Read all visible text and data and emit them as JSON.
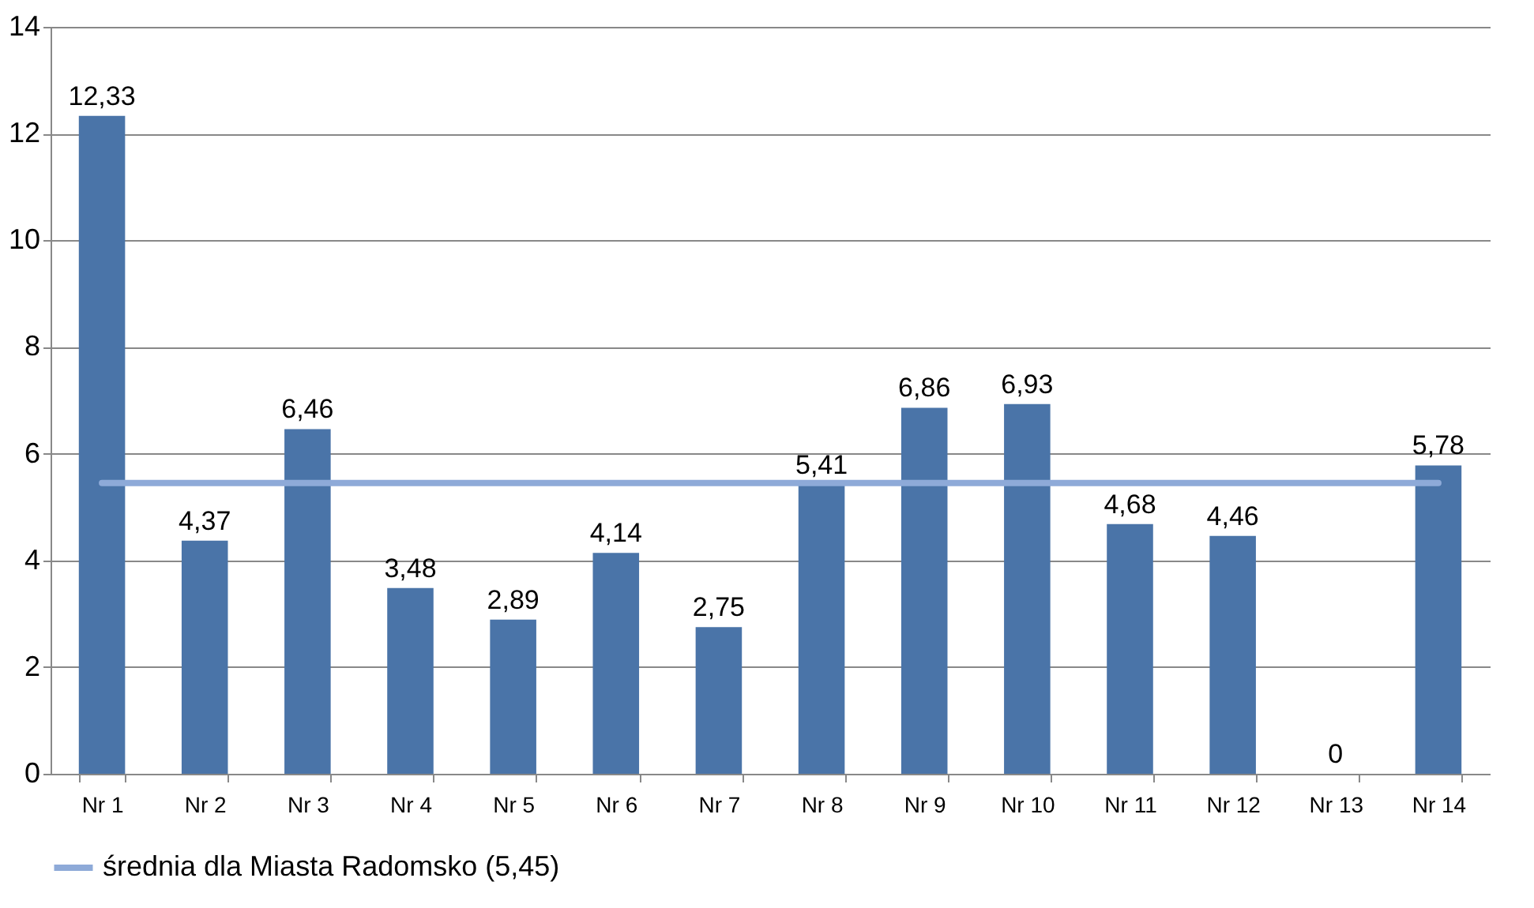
{
  "chart_data": {
    "type": "bar",
    "categories": [
      "Nr 1",
      "Nr 2",
      "Nr 3",
      "Nr 4",
      "Nr 5",
      "Nr 6",
      "Nr 7",
      "Nr 8",
      "Nr 9",
      "Nr 10",
      "Nr 11",
      "Nr 12",
      "Nr 13",
      "Nr 14"
    ],
    "series": [
      {
        "color": "#4a74a8",
        "values": [
          12.33,
          4.37,
          6.46,
          3.48,
          2.89,
          4.14,
          2.75,
          5.41,
          6.86,
          6.93,
          4.68,
          4.46,
          0,
          5.78
        ],
        "value_labels": [
          "12,33",
          "4,37",
          "6,46",
          "3,48",
          "2,89",
          "4,14",
          "2,75",
          "5,41",
          "6,86",
          "6,93",
          "4,68",
          "4,46",
          "0",
          "5,78"
        ]
      },
      {
        "name": "średnia dla Miasta Radomsko (5,45)",
        "type": "line",
        "color": "#8eaad8",
        "values": [
          5.45,
          5.45,
          5.45,
          5.45,
          5.45,
          5.45,
          5.45,
          5.45,
          5.45,
          5.45,
          5.45,
          5.45,
          5.45,
          5.45
        ]
      }
    ],
    "ylim": [
      0,
      14
    ],
    "yticks": [
      0,
      2,
      4,
      6,
      8,
      10,
      12,
      14
    ],
    "grid": "y",
    "legend": "bottom"
  }
}
